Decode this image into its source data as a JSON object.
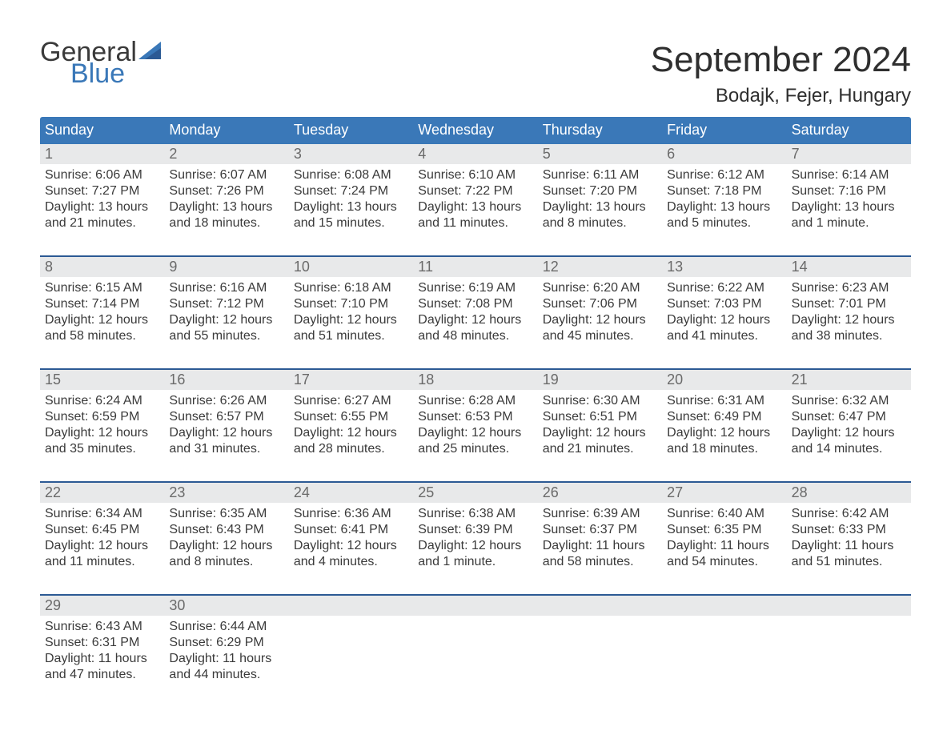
{
  "colors": {
    "brand": "#3a78b8",
    "brand_dark": "#2c5a94",
    "weekday_header_bg": "#3a78b8",
    "weekday_header_text": "#ffffff",
    "daynum_bg": "#e8e9ea",
    "daynum_text": "#6a6a6a",
    "rule": "#2c5a94",
    "body_text": "#3a3a3a",
    "page_bg": "#ffffff"
  },
  "fonts": {
    "month_title_pt": 44,
    "location_pt": 24,
    "weekday_pt": 18,
    "daynum_pt": 18,
    "cell_pt": 16,
    "logo_pt": 34
  },
  "logo": {
    "line1": "General",
    "line2": "Blue",
    "sail_color": "#3a78b8"
  },
  "title": {
    "month": "September 2024",
    "location": "Bodajk, Fejer, Hungary"
  },
  "weekdays": [
    "Sunday",
    "Monday",
    "Tuesday",
    "Wednesday",
    "Thursday",
    "Friday",
    "Saturday"
  ],
  "calendar": {
    "type": "table",
    "columns": 7,
    "start_weekday": "Sunday",
    "weeks": [
      [
        {
          "num": "1",
          "sunrise": "Sunrise: 6:06 AM",
          "sunset": "Sunset: 7:27 PM",
          "daylight1": "Daylight: 13 hours",
          "daylight2": "and 21 minutes."
        },
        {
          "num": "2",
          "sunrise": "Sunrise: 6:07 AM",
          "sunset": "Sunset: 7:26 PM",
          "daylight1": "Daylight: 13 hours",
          "daylight2": "and 18 minutes."
        },
        {
          "num": "3",
          "sunrise": "Sunrise: 6:08 AM",
          "sunset": "Sunset: 7:24 PM",
          "daylight1": "Daylight: 13 hours",
          "daylight2": "and 15 minutes."
        },
        {
          "num": "4",
          "sunrise": "Sunrise: 6:10 AM",
          "sunset": "Sunset: 7:22 PM",
          "daylight1": "Daylight: 13 hours",
          "daylight2": "and 11 minutes."
        },
        {
          "num": "5",
          "sunrise": "Sunrise: 6:11 AM",
          "sunset": "Sunset: 7:20 PM",
          "daylight1": "Daylight: 13 hours",
          "daylight2": "and 8 minutes."
        },
        {
          "num": "6",
          "sunrise": "Sunrise: 6:12 AM",
          "sunset": "Sunset: 7:18 PM",
          "daylight1": "Daylight: 13 hours",
          "daylight2": "and 5 minutes."
        },
        {
          "num": "7",
          "sunrise": "Sunrise: 6:14 AM",
          "sunset": "Sunset: 7:16 PM",
          "daylight1": "Daylight: 13 hours",
          "daylight2": "and 1 minute."
        }
      ],
      [
        {
          "num": "8",
          "sunrise": "Sunrise: 6:15 AM",
          "sunset": "Sunset: 7:14 PM",
          "daylight1": "Daylight: 12 hours",
          "daylight2": "and 58 minutes."
        },
        {
          "num": "9",
          "sunrise": "Sunrise: 6:16 AM",
          "sunset": "Sunset: 7:12 PM",
          "daylight1": "Daylight: 12 hours",
          "daylight2": "and 55 minutes."
        },
        {
          "num": "10",
          "sunrise": "Sunrise: 6:18 AM",
          "sunset": "Sunset: 7:10 PM",
          "daylight1": "Daylight: 12 hours",
          "daylight2": "and 51 minutes."
        },
        {
          "num": "11",
          "sunrise": "Sunrise: 6:19 AM",
          "sunset": "Sunset: 7:08 PM",
          "daylight1": "Daylight: 12 hours",
          "daylight2": "and 48 minutes."
        },
        {
          "num": "12",
          "sunrise": "Sunrise: 6:20 AM",
          "sunset": "Sunset: 7:06 PM",
          "daylight1": "Daylight: 12 hours",
          "daylight2": "and 45 minutes."
        },
        {
          "num": "13",
          "sunrise": "Sunrise: 6:22 AM",
          "sunset": "Sunset: 7:03 PM",
          "daylight1": "Daylight: 12 hours",
          "daylight2": "and 41 minutes."
        },
        {
          "num": "14",
          "sunrise": "Sunrise: 6:23 AM",
          "sunset": "Sunset: 7:01 PM",
          "daylight1": "Daylight: 12 hours",
          "daylight2": "and 38 minutes."
        }
      ],
      [
        {
          "num": "15",
          "sunrise": "Sunrise: 6:24 AM",
          "sunset": "Sunset: 6:59 PM",
          "daylight1": "Daylight: 12 hours",
          "daylight2": "and 35 minutes."
        },
        {
          "num": "16",
          "sunrise": "Sunrise: 6:26 AM",
          "sunset": "Sunset: 6:57 PM",
          "daylight1": "Daylight: 12 hours",
          "daylight2": "and 31 minutes."
        },
        {
          "num": "17",
          "sunrise": "Sunrise: 6:27 AM",
          "sunset": "Sunset: 6:55 PM",
          "daylight1": "Daylight: 12 hours",
          "daylight2": "and 28 minutes."
        },
        {
          "num": "18",
          "sunrise": "Sunrise: 6:28 AM",
          "sunset": "Sunset: 6:53 PM",
          "daylight1": "Daylight: 12 hours",
          "daylight2": "and 25 minutes."
        },
        {
          "num": "19",
          "sunrise": "Sunrise: 6:30 AM",
          "sunset": "Sunset: 6:51 PM",
          "daylight1": "Daylight: 12 hours",
          "daylight2": "and 21 minutes."
        },
        {
          "num": "20",
          "sunrise": "Sunrise: 6:31 AM",
          "sunset": "Sunset: 6:49 PM",
          "daylight1": "Daylight: 12 hours",
          "daylight2": "and 18 minutes."
        },
        {
          "num": "21",
          "sunrise": "Sunrise: 6:32 AM",
          "sunset": "Sunset: 6:47 PM",
          "daylight1": "Daylight: 12 hours",
          "daylight2": "and 14 minutes."
        }
      ],
      [
        {
          "num": "22",
          "sunrise": "Sunrise: 6:34 AM",
          "sunset": "Sunset: 6:45 PM",
          "daylight1": "Daylight: 12 hours",
          "daylight2": "and 11 minutes."
        },
        {
          "num": "23",
          "sunrise": "Sunrise: 6:35 AM",
          "sunset": "Sunset: 6:43 PM",
          "daylight1": "Daylight: 12 hours",
          "daylight2": "and 8 minutes."
        },
        {
          "num": "24",
          "sunrise": "Sunrise: 6:36 AM",
          "sunset": "Sunset: 6:41 PM",
          "daylight1": "Daylight: 12 hours",
          "daylight2": "and 4 minutes."
        },
        {
          "num": "25",
          "sunrise": "Sunrise: 6:38 AM",
          "sunset": "Sunset: 6:39 PM",
          "daylight1": "Daylight: 12 hours",
          "daylight2": "and 1 minute."
        },
        {
          "num": "26",
          "sunrise": "Sunrise: 6:39 AM",
          "sunset": "Sunset: 6:37 PM",
          "daylight1": "Daylight: 11 hours",
          "daylight2": "and 58 minutes."
        },
        {
          "num": "27",
          "sunrise": "Sunrise: 6:40 AM",
          "sunset": "Sunset: 6:35 PM",
          "daylight1": "Daylight: 11 hours",
          "daylight2": "and 54 minutes."
        },
        {
          "num": "28",
          "sunrise": "Sunrise: 6:42 AM",
          "sunset": "Sunset: 6:33 PM",
          "daylight1": "Daylight: 11 hours",
          "daylight2": "and 51 minutes."
        }
      ],
      [
        {
          "num": "29",
          "sunrise": "Sunrise: 6:43 AM",
          "sunset": "Sunset: 6:31 PM",
          "daylight1": "Daylight: 11 hours",
          "daylight2": "and 47 minutes."
        },
        {
          "num": "30",
          "sunrise": "Sunrise: 6:44 AM",
          "sunset": "Sunset: 6:29 PM",
          "daylight1": "Daylight: 11 hours",
          "daylight2": "and 44 minutes."
        },
        null,
        null,
        null,
        null,
        null
      ]
    ]
  }
}
